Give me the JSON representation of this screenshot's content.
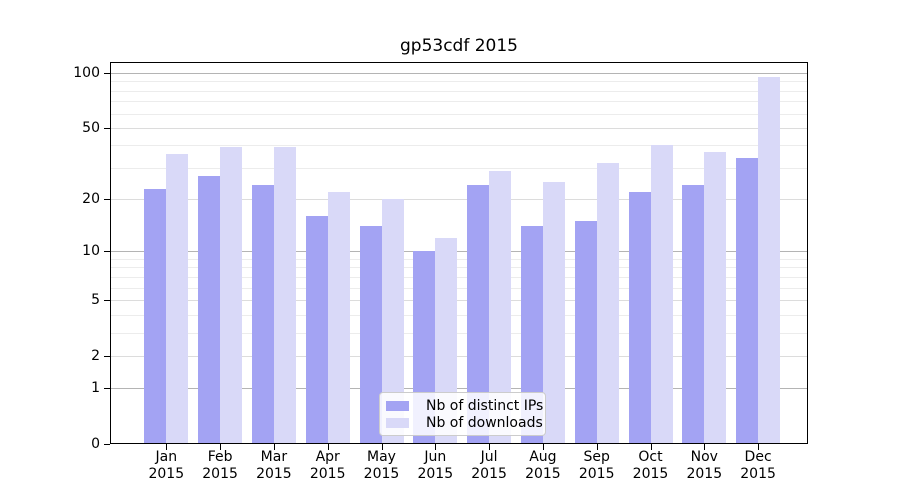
{
  "chart_data": {
    "type": "bar",
    "title": "gp53cdf 2015",
    "categories": [
      "Jan",
      "Feb",
      "Mar",
      "Apr",
      "May",
      "Jun",
      "Jul",
      "Aug",
      "Sep",
      "Oct",
      "Nov",
      "Dec"
    ],
    "x_tick_second_line": "2015",
    "series": [
      {
        "name": "Nb of distinct IPs",
        "color": "#a3a3f3",
        "values": [
          23,
          27,
          24,
          16,
          14,
          10,
          24,
          14,
          15,
          22,
          24,
          34
        ]
      },
      {
        "name": "Nb of downloads",
        "color": "#d9d9f8",
        "values": [
          36,
          39,
          39,
          22,
          20,
          12,
          29,
          25,
          32,
          40,
          37,
          95
        ]
      }
    ],
    "y_axis": {
      "scale": "log1p",
      "tick_values": [
        0,
        1,
        2,
        5,
        10,
        20,
        50,
        100
      ],
      "major_grid_values": [
        1,
        10,
        100
      ],
      "mid_grid_values": [
        2,
        5,
        20,
        50
      ],
      "minor_grid_values": [
        3,
        4,
        6,
        7,
        8,
        9,
        30,
        40,
        60,
        70,
        80,
        90
      ],
      "top_value": 100
    },
    "legend": {
      "position": "lower center"
    },
    "colors": {
      "major_grid": "#b4b4b4",
      "mid_grid": "#dcdcdc",
      "minor_grid": "#ececec",
      "axis": "#000000",
      "background": "#ffffff"
    },
    "grid": true
  }
}
